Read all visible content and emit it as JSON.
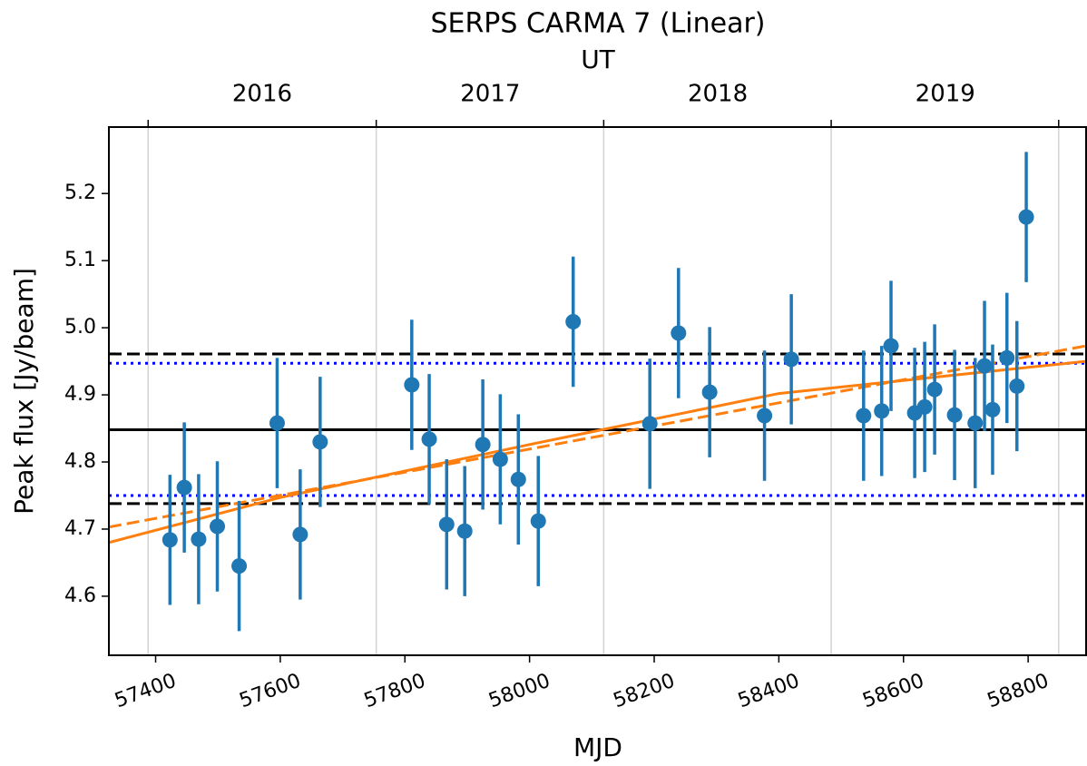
{
  "chart_data": {
    "type": "errorbar",
    "title": "SERPS CARMA 7 (Linear)",
    "x_label": "MJD",
    "y_label": "Peak flux [Jy/beam]",
    "xlim": [
      57325,
      58893
    ],
    "ylim": [
      4.512,
      5.299
    ],
    "xticks": [
      57400,
      57600,
      57800,
      58000,
      58200,
      58400,
      58600,
      58800
    ],
    "yticks": [
      4.6,
      4.7,
      4.8,
      4.9,
      {
        "value": 5,
        "label": "5.0"
      },
      5.1,
      5.2
    ],
    "top_axis": {
      "label": "UT",
      "ticks": [
        57388,
        57754,
        58119,
        58484,
        58849
      ],
      "year_labels": [
        {
          "value": 57571,
          "label": "2016"
        },
        {
          "value": 57937,
          "label": "2017"
        },
        {
          "value": 58302,
          "label": "2018"
        },
        {
          "value": 58667,
          "label": "2019"
        }
      ]
    },
    "grid": "x",
    "series": [
      {
        "color": "#1f77b4",
        "x": [
          57423,
          57446,
          57469,
          57499,
          57534,
          57595,
          57632,
          57664,
          57811,
          57839,
          57867,
          57896,
          57925,
          57953,
          57982,
          58014,
          58070,
          58193,
          58239,
          58289,
          58377,
          58420,
          58536,
          58565,
          58580,
          58618,
          58634,
          58650,
          58682,
          58715,
          58730,
          58743,
          58766,
          58782,
          58797
        ],
        "values": [
          4.684,
          4.762,
          4.685,
          4.704,
          4.645,
          4.858,
          4.692,
          4.83,
          4.915,
          4.834,
          4.707,
          4.697,
          4.826,
          4.804,
          4.774,
          4.712,
          5.009,
          4.857,
          4.992,
          4.904,
          4.869,
          4.953,
          4.869,
          4.876,
          4.973,
          4.873,
          4.882,
          4.908,
          4.87,
          4.858,
          4.943,
          4.878,
          4.955,
          4.913,
          5.165
        ],
        "errors": [
          0.097,
          0.097,
          0.097,
          0.097,
          0.097,
          0.097,
          0.097,
          0.097,
          0.097,
          0.097,
          0.097,
          0.097,
          0.097,
          0.097,
          0.097,
          0.097,
          0.097,
          0.097,
          0.097,
          0.097,
          0.097,
          0.097,
          0.097,
          0.097,
          0.097,
          0.097,
          0.097,
          0.097,
          0.097,
          0.097,
          0.097,
          0.097,
          0.097,
          0.097,
          0.097
        ]
      }
    ],
    "hlines": [
      {
        "value": 4.848,
        "color": "#000000",
        "style": "solid"
      },
      {
        "value": 4.961,
        "color": "#000000",
        "style": "dashed"
      },
      {
        "value": 4.738,
        "color": "#000000",
        "style": "dashed"
      },
      {
        "value": 4.947,
        "color": "#0000ff",
        "style": "dotted"
      },
      {
        "value": 4.75,
        "color": "#0000ff",
        "style": "dotted"
      }
    ],
    "fits": [
      {
        "color": "#ff7f0e",
        "style": "solid",
        "x": [
          57325,
          57600,
          58000,
          58400,
          58893
        ],
        "values": [
          4.68,
          4.747,
          4.826,
          4.902,
          4.95
        ]
      },
      {
        "color": "#ff7f0e",
        "style": "dashed",
        "x": [
          57325,
          58893
        ],
        "values": [
          4.703,
          4.973
        ]
      }
    ]
  }
}
